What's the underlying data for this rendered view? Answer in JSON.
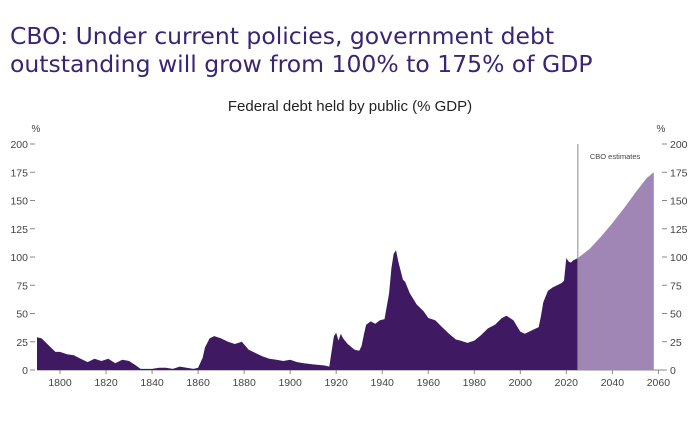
{
  "headline": "CBO: Under current policies, government debt outstanding will grow from 100% to 175% of GDP",
  "chart_data": {
    "type": "area",
    "title": "Federal debt held by public (% GDP)",
    "y_unit_left": "%",
    "y_unit_right": "%",
    "xlim": [
      1790,
      2062
    ],
    "ylim": [
      0,
      200
    ],
    "x_ticks": [
      1800,
      1820,
      1840,
      1860,
      1880,
      1900,
      1920,
      1940,
      1960,
      1980,
      2000,
      2020,
      2040,
      2060
    ],
    "y_ticks": [
      0,
      25,
      50,
      75,
      100,
      125,
      150,
      175,
      200
    ],
    "annotation": "CBO estimates",
    "divider_year": 2025,
    "grid": false,
    "colors": {
      "historical": "#3f1a63",
      "projection": "#9f86b5",
      "divider": "#8a8a8a"
    },
    "series": [
      {
        "x": [
          1790,
          1792,
          1795,
          1798,
          1800,
          1803,
          1806,
          1809,
          1812,
          1815,
          1818,
          1821,
          1824,
          1827,
          1830,
          1833,
          1835,
          1837,
          1840,
          1843,
          1846,
          1849,
          1852,
          1855,
          1858,
          1860,
          1862,
          1863,
          1865,
          1867,
          1870,
          1873,
          1876,
          1879,
          1882,
          1885,
          1888,
          1891,
          1894,
          1897,
          1900,
          1903,
          1906,
          1910,
          1915,
          1917,
          1919,
          1920,
          1921,
          1922,
          1923,
          1925,
          1928,
          1930,
          1931,
          1932,
          1933,
          1935,
          1937,
          1939,
          1941,
          1943,
          1944,
          1945,
          1946,
          1947,
          1948,
          1949,
          1950,
          1952,
          1955,
          1958,
          1960,
          1963,
          1966,
          1969,
          1972,
          1974,
          1977,
          1980,
          1983,
          1986,
          1989,
          1992,
          1994,
          1997,
          2000,
          2002,
          2005,
          2008,
          2009,
          2010,
          2012,
          2014,
          2016,
          2018,
          2019,
          2020,
          2021,
          2022,
          2023,
          2024,
          2025
        ],
        "values": [
          29,
          28,
          22,
          16,
          16,
          14,
          13,
          10,
          7,
          10,
          8,
          10,
          6,
          9,
          8,
          4,
          1,
          1,
          1,
          2,
          2,
          1,
          3,
          2,
          1,
          2,
          11,
          20,
          28,
          30,
          28,
          25,
          23,
          25,
          18,
          15,
          12,
          10,
          9,
          8,
          9,
          7,
          6,
          5,
          4,
          3,
          30,
          33,
          26,
          32,
          28,
          23,
          18,
          17,
          21,
          31,
          40,
          43,
          41,
          44,
          45,
          68,
          90,
          103,
          106,
          96,
          88,
          80,
          78,
          68,
          58,
          52,
          46,
          44,
          38,
          32,
          27,
          26,
          24,
          26,
          31,
          37,
          40,
          46,
          48,
          44,
          34,
          32,
          35,
          38,
          48,
          60,
          70,
          73,
          75,
          77,
          79,
          99,
          96,
          95,
          97,
          98,
          99
        ]
      },
      {
        "x": [
          2025,
          2030,
          2035,
          2040,
          2045,
          2050,
          2055,
          2058
        ],
        "values": [
          99,
          107,
          118,
          130,
          143,
          157,
          170,
          175
        ]
      }
    ]
  }
}
